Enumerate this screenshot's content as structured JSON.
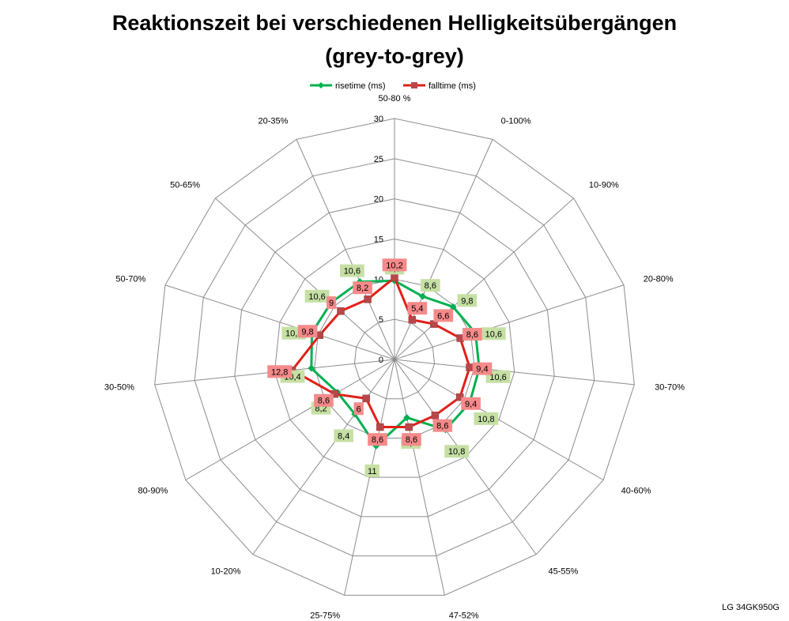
{
  "chart_data": {
    "type": "radar",
    "title_line1": "Reaktionszeit bei verschiedenen Helligkeitsübergängen",
    "title_line2": "(grey-to-grey)",
    "categories": [
      "50-80 %",
      "0-100%",
      "10-90%",
      "20-80%",
      "30-70%",
      "40-60%",
      "45-55%",
      "47-52%",
      "25-75%",
      "10-20%",
      "80-90%",
      "30-50%",
      "50-70%",
      "50-65%",
      "20-35%"
    ],
    "rlim": [
      0,
      30
    ],
    "ticks": [
      0,
      5,
      10,
      15,
      20,
      25,
      30
    ],
    "legend_position": "top",
    "series": [
      {
        "name": "risetime (ms)",
        "color": "#00b050",
        "label_bg": "#c6e0a4",
        "marker": "diamond",
        "values": [
          9.8,
          8.6,
          9.8,
          10.6,
          10.6,
          10.8,
          10.8,
          7.4,
          11,
          8.4,
          8.2,
          10.4,
          10.8,
          10.6,
          10.6
        ],
        "labels": [
          "9,8",
          "8,6",
          "9,8",
          "10,6",
          "10,6",
          "10,8",
          "10,8",
          "7,4",
          "11",
          "8,4",
          "8,2",
          "10,4",
          "10,8",
          "10,6",
          "10,6"
        ]
      },
      {
        "name": "falltime (ms)",
        "color": "#e0201a",
        "label_bg": "#f58a8a",
        "marker": "square",
        "values": [
          10.2,
          5.4,
          6.6,
          8.6,
          9.4,
          9.4,
          8.6,
          8.6,
          8.6,
          6,
          8.6,
          12.8,
          9.8,
          9,
          8.2
        ],
        "labels": [
          "10,2",
          "5,4",
          "6,6",
          "8,6",
          "9,4",
          "9,4",
          "8,6",
          "8,6",
          "8,6",
          "6",
          "8,6",
          "12,8",
          "9,8",
          "9",
          "8,2"
        ]
      }
    ]
  },
  "footer": "LG 34GK950G"
}
